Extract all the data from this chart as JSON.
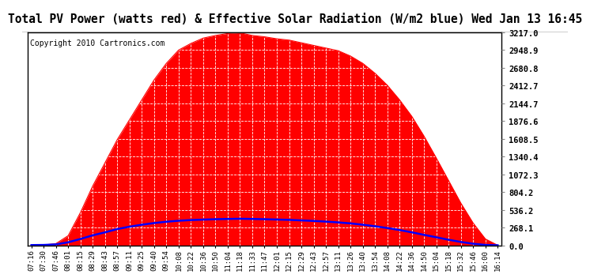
{
  "title": "Total PV Power (watts red) & Effective Solar Radiation (W/m2 blue) Wed Jan 13 16:45",
  "copyright": "Copyright 2010 Cartronics.com",
  "yticks": [
    0.0,
    268.1,
    536.2,
    804.2,
    1072.3,
    1340.4,
    1608.5,
    1876.6,
    2144.7,
    2412.7,
    2680.8,
    2948.9,
    3217.0
  ],
  "ymax": 3217.0,
  "ymin": 0.0,
  "x_labels": [
    "07:16",
    "07:30",
    "07:46",
    "08:01",
    "08:15",
    "08:29",
    "08:43",
    "08:57",
    "09:11",
    "09:25",
    "09:40",
    "09:54",
    "10:08",
    "10:22",
    "10:36",
    "10:50",
    "11:04",
    "11:18",
    "11:33",
    "11:47",
    "12:01",
    "12:15",
    "12:29",
    "12:43",
    "12:57",
    "13:11",
    "13:26",
    "13:40",
    "13:54",
    "14:08",
    "14:22",
    "14:36",
    "14:50",
    "15:04",
    "15:18",
    "15:32",
    "15:46",
    "16:00",
    "16:14"
  ],
  "pv_power": [
    5,
    10,
    30,
    150,
    500,
    900,
    1250,
    1600,
    1900,
    2200,
    2500,
    2750,
    2950,
    3050,
    3130,
    3170,
    3200,
    3210,
    3170,
    3150,
    3120,
    3100,
    3060,
    3020,
    2980,
    2940,
    2860,
    2750,
    2600,
    2420,
    2200,
    1950,
    1650,
    1320,
    980,
    640,
    340,
    100,
    5
  ],
  "solar_rad": [
    8,
    10,
    18,
    50,
    100,
    155,
    200,
    250,
    285,
    315,
    340,
    360,
    375,
    385,
    392,
    398,
    402,
    405,
    402,
    398,
    393,
    388,
    380,
    372,
    362,
    350,
    335,
    315,
    292,
    265,
    235,
    200,
    162,
    125,
    88,
    55,
    28,
    10,
    5
  ],
  "red_color": "#ff0000",
  "blue_color": "#0000ff",
  "title_fontsize": 10.5,
  "copyright_fontsize": 7,
  "tick_fontsize": 6.5,
  "ytick_fontsize": 7.5,
  "outer_bg": "#ffffff",
  "plot_bg": "#ffffff",
  "title_bg": "#ffffff"
}
